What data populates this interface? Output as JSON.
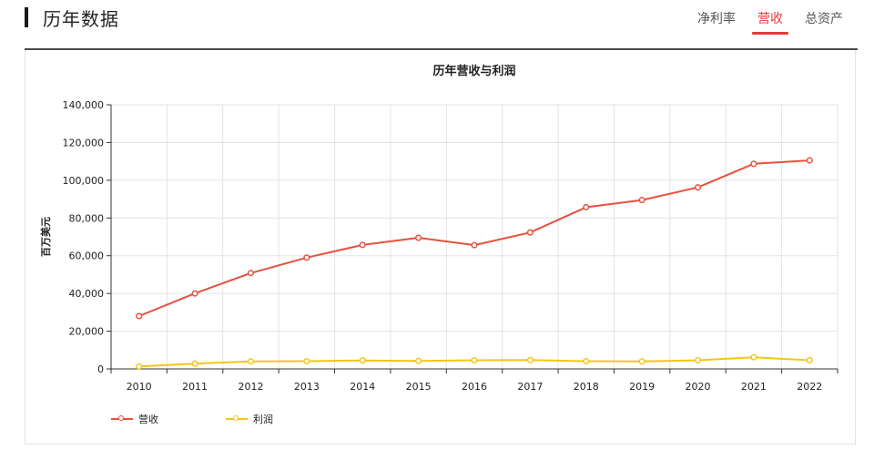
{
  "header": {
    "title": "历年数据",
    "tabs": [
      {
        "label": "净利率",
        "active": false
      },
      {
        "label": "营收",
        "active": true
      },
      {
        "label": "总资产",
        "active": false
      }
    ]
  },
  "colors": {
    "accent": "#e4393c",
    "revenue": "#e8503e",
    "profit": "#f5c518"
  },
  "chart_data": {
    "type": "line",
    "title": "历年营收与利润",
    "ylabel": "百万美元",
    "xlabel": "",
    "categories": [
      "2010",
      "2011",
      "2012",
      "2013",
      "2014",
      "2015",
      "2016",
      "2017",
      "2018",
      "2019",
      "2020",
      "2021",
      "2022"
    ],
    "ylim": [
      0,
      140000
    ],
    "yticks": [
      0,
      20000,
      40000,
      60000,
      80000,
      100000,
      120000,
      140000
    ],
    "ytick_labels": [
      "0",
      "20,000",
      "40,000",
      "60,000",
      "80,000",
      "100,000",
      "120,000",
      "140,000"
    ],
    "grid": true,
    "legend_position": "bottom-left",
    "series": [
      {
        "name": "营收",
        "color": "#e8503e",
        "values": [
          28000,
          40000,
          50800,
          59000,
          65700,
          69500,
          65600,
          72300,
          85700,
          89500,
          96200,
          108700,
          110500
        ]
      },
      {
        "name": "利润",
        "color": "#f5c518",
        "values": [
          1300,
          2800,
          4000,
          4100,
          4500,
          4200,
          4600,
          4700,
          4100,
          4000,
          4600,
          6200,
          4600
        ]
      }
    ]
  }
}
